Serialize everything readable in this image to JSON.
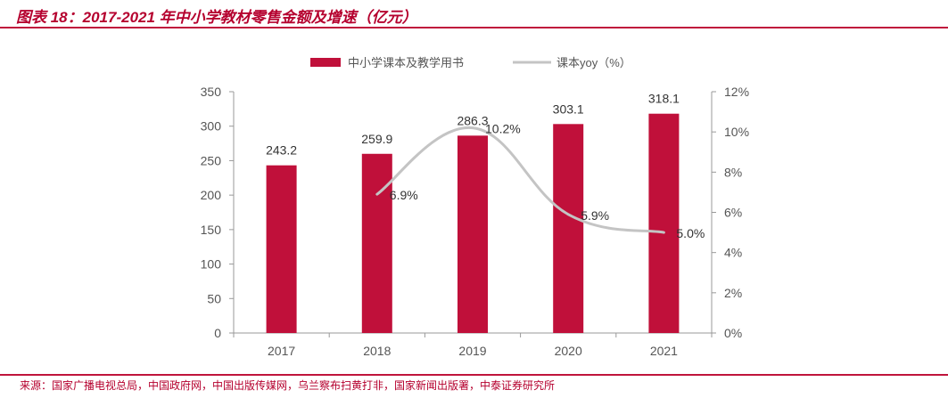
{
  "header": {
    "title": "图表 18：2017-2021 年中小学教材零售金额及增速（亿元）"
  },
  "footer": {
    "source": "来源：国家广播电视总局，中国政府网，中国出版传媒网，乌兰察布扫黄打非，国家新闻出版署，中泰证券研究所"
  },
  "colors": {
    "bar": "#c0103a",
    "line": "#c4c4c4",
    "axis": "#999999",
    "accent": "#b5002e"
  },
  "chart_data": {
    "type": "bar",
    "categories": [
      "2017",
      "2018",
      "2019",
      "2020",
      "2021"
    ],
    "series": [
      {
        "name": "中小学课本及教学用书",
        "type": "bar",
        "axis": "left",
        "values": [
          243.2,
          259.9,
          286.3,
          303.1,
          318.1
        ],
        "labels": [
          "243.2",
          "259.9",
          "286.3",
          "303.1",
          "318.1"
        ]
      },
      {
        "name": "课本yoy（%）",
        "type": "line",
        "axis": "right",
        "values": [
          null,
          6.9,
          10.2,
          5.9,
          5.0
        ],
        "labels": [
          "",
          "6.9%",
          "10.2%",
          "5.9%",
          "5.0%"
        ]
      }
    ],
    "y_left": {
      "lim": [
        0,
        350
      ],
      "ticks": [
        0,
        50,
        100,
        150,
        200,
        250,
        300,
        350
      ],
      "tick_labels": [
        "0",
        "50",
        "100",
        "150",
        "200",
        "250",
        "300",
        "350"
      ]
    },
    "y_right": {
      "lim": [
        0,
        12
      ],
      "ticks": [
        0,
        2,
        4,
        6,
        8,
        10,
        12
      ],
      "tick_labels": [
        "0%",
        "2%",
        "4%",
        "6%",
        "8%",
        "10%",
        "12%"
      ]
    },
    "grid": false,
    "legend_position": "top-center"
  }
}
